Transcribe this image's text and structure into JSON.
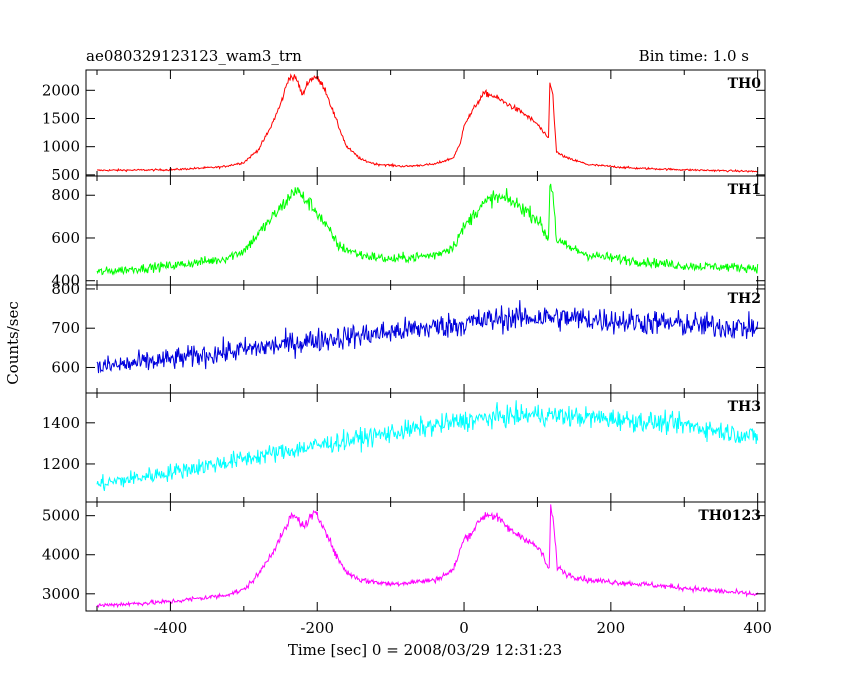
{
  "chart_data": {
    "type": "line",
    "title_left": "ae080329123123_wam3_trn",
    "title_right": "Bin time: 1.0 s",
    "xlabel": "Time [sec] 0 = 2008/03/29 12:31:23",
    "ylabel": "Counts/sec",
    "xlim": [
      -515,
      410
    ],
    "xticks": [
      -400,
      -200,
      0,
      200,
      400
    ],
    "panels": [
      {
        "name": "TH0",
        "color": "#ff0000",
        "ylim": [
          480,
          2360
        ],
        "yticks": [
          500,
          1000,
          1500,
          2000
        ],
        "noise": 0.028,
        "points": [
          [
            -500,
            580
          ],
          [
            -400,
            590
          ],
          [
            -330,
            640
          ],
          [
            -300,
            720
          ],
          [
            -280,
            950
          ],
          [
            -265,
            1300
          ],
          [
            -250,
            1750
          ],
          [
            -238,
            2250
          ],
          [
            -228,
            2200
          ],
          [
            -220,
            1900
          ],
          [
            -213,
            2150
          ],
          [
            -203,
            2250
          ],
          [
            -190,
            2050
          ],
          [
            -175,
            1500
          ],
          [
            -160,
            1000
          ],
          [
            -140,
            770
          ],
          [
            -120,
            690
          ],
          [
            -80,
            650
          ],
          [
            -40,
            690
          ],
          [
            -15,
            800
          ],
          [
            -5,
            1050
          ],
          [
            0,
            1400
          ],
          [
            8,
            1550
          ],
          [
            18,
            1780
          ],
          [
            28,
            1950
          ],
          [
            40,
            1900
          ],
          [
            60,
            1750
          ],
          [
            80,
            1600
          ],
          [
            100,
            1400
          ],
          [
            112,
            1180
          ],
          [
            115,
            1150
          ],
          [
            117,
            2150
          ],
          [
            121,
            1900
          ],
          [
            126,
            900
          ],
          [
            140,
            800
          ],
          [
            170,
            680
          ],
          [
            230,
            620
          ],
          [
            300,
            590
          ],
          [
            400,
            560
          ]
        ]
      },
      {
        "name": "TH1",
        "color": "#00ff00",
        "ylim": [
          380,
          890
        ],
        "yticks": [
          400,
          600,
          800
        ],
        "noise": 0.045,
        "points": [
          [
            -500,
            440
          ],
          [
            -400,
            470
          ],
          [
            -330,
            500
          ],
          [
            -300,
            540
          ],
          [
            -280,
            620
          ],
          [
            -260,
            700
          ],
          [
            -240,
            780
          ],
          [
            -230,
            830
          ],
          [
            -220,
            790
          ],
          [
            -210,
            760
          ],
          [
            -200,
            720
          ],
          [
            -185,
            640
          ],
          [
            -170,
            560
          ],
          [
            -140,
            520
          ],
          [
            -100,
            500
          ],
          [
            -40,
            520
          ],
          [
            -15,
            560
          ],
          [
            0,
            650
          ],
          [
            20,
            740
          ],
          [
            40,
            790
          ],
          [
            60,
            780
          ],
          [
            80,
            740
          ],
          [
            100,
            690
          ],
          [
            112,
            610
          ],
          [
            115,
            600
          ],
          [
            117,
            850
          ],
          [
            121,
            820
          ],
          [
            126,
            590
          ],
          [
            140,
            560
          ],
          [
            170,
            520
          ],
          [
            240,
            490
          ],
          [
            300,
            470
          ],
          [
            400,
            460
          ]
        ]
      },
      {
        "name": "TH2",
        "color": "#0000dd",
        "ylim": [
          535,
          810
        ],
        "yticks": [
          600,
          700,
          800
        ],
        "noise": 0.045,
        "points": [
          [
            -500,
            600
          ],
          [
            -400,
            620
          ],
          [
            -300,
            645
          ],
          [
            -200,
            670
          ],
          [
            -100,
            690
          ],
          [
            0,
            712
          ],
          [
            50,
            725
          ],
          [
            100,
            728
          ],
          [
            150,
            725
          ],
          [
            200,
            720
          ],
          [
            300,
            710
          ],
          [
            400,
            700
          ]
        ]
      },
      {
        "name": "TH3",
        "color": "#00ffff",
        "ylim": [
          1015,
          1545
        ],
        "yticks": [
          1200,
          1400
        ],
        "noise": 0.035,
        "points": [
          [
            -500,
            1100
          ],
          [
            -400,
            1160
          ],
          [
            -300,
            1225
          ],
          [
            -200,
            1290
          ],
          [
            -100,
            1350
          ],
          [
            0,
            1410
          ],
          [
            50,
            1430
          ],
          [
            100,
            1440
          ],
          [
            150,
            1430
          ],
          [
            200,
            1420
          ],
          [
            300,
            1390
          ],
          [
            400,
            1330
          ]
        ]
      },
      {
        "name": "TH0123",
        "color": "#ff00ff",
        "ylim": [
          2560,
          5350
        ],
        "yticks": [
          3000,
          4000,
          5000
        ],
        "noise": 0.022,
        "points": [
          [
            -500,
            2700
          ],
          [
            -400,
            2800
          ],
          [
            -330,
            2950
          ],
          [
            -300,
            3100
          ],
          [
            -280,
            3500
          ],
          [
            -260,
            4100
          ],
          [
            -245,
            4600
          ],
          [
            -235,
            5000
          ],
          [
            -225,
            4900
          ],
          [
            -218,
            4700
          ],
          [
            -210,
            4950
          ],
          [
            -203,
            5050
          ],
          [
            -190,
            4700
          ],
          [
            -175,
            4000
          ],
          [
            -160,
            3550
          ],
          [
            -140,
            3350
          ],
          [
            -100,
            3250
          ],
          [
            -40,
            3350
          ],
          [
            -15,
            3600
          ],
          [
            0,
            4400
          ],
          [
            10,
            4550
          ],
          [
            22,
            4900
          ],
          [
            32,
            5050
          ],
          [
            45,
            4950
          ],
          [
            65,
            4600
          ],
          [
            85,
            4400
          ],
          [
            105,
            4100
          ],
          [
            113,
            3700
          ],
          [
            116,
            3650
          ],
          [
            118,
            5200
          ],
          [
            122,
            4800
          ],
          [
            127,
            3700
          ],
          [
            140,
            3500
          ],
          [
            170,
            3350
          ],
          [
            240,
            3250
          ],
          [
            300,
            3150
          ],
          [
            400,
            2980
          ]
        ]
      }
    ]
  }
}
